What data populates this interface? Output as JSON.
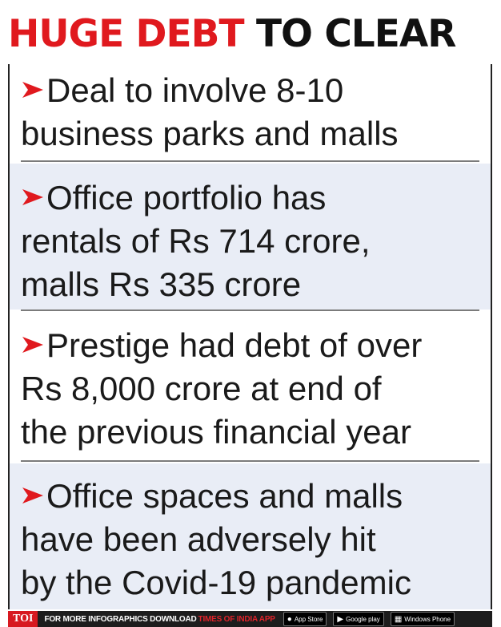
{
  "title": {
    "part1": "HUGE DEBT",
    "part2": "TO CLEAR"
  },
  "items": [
    {
      "lines": [
        "Deal to involve 8-10",
        "business parks and malls"
      ]
    },
    {
      "lines": [
        "Office portfolio has",
        "rentals of Rs 714 crore,",
        "malls Rs 335 crore"
      ]
    },
    {
      "lines": [
        "Prestige had debt of over",
        "Rs 8,000 crore at end of",
        "the previous financial year"
      ]
    },
    {
      "lines": [
        "Office spaces and malls",
        "have been adversely hit",
        "by the Covid-19 pandemic"
      ]
    }
  ],
  "footer": {
    "logo": "TOI",
    "text": "FOR MORE  INFOGRAPHICS DOWNLOAD",
    "app_name": "TIMES OF INDIA APP",
    "app_store": "App Store",
    "google_play": "Google play",
    "windows": "Windows Phone"
  },
  "colors": {
    "accent_red": "#e0191e",
    "band_blue": "#e9edf6"
  }
}
